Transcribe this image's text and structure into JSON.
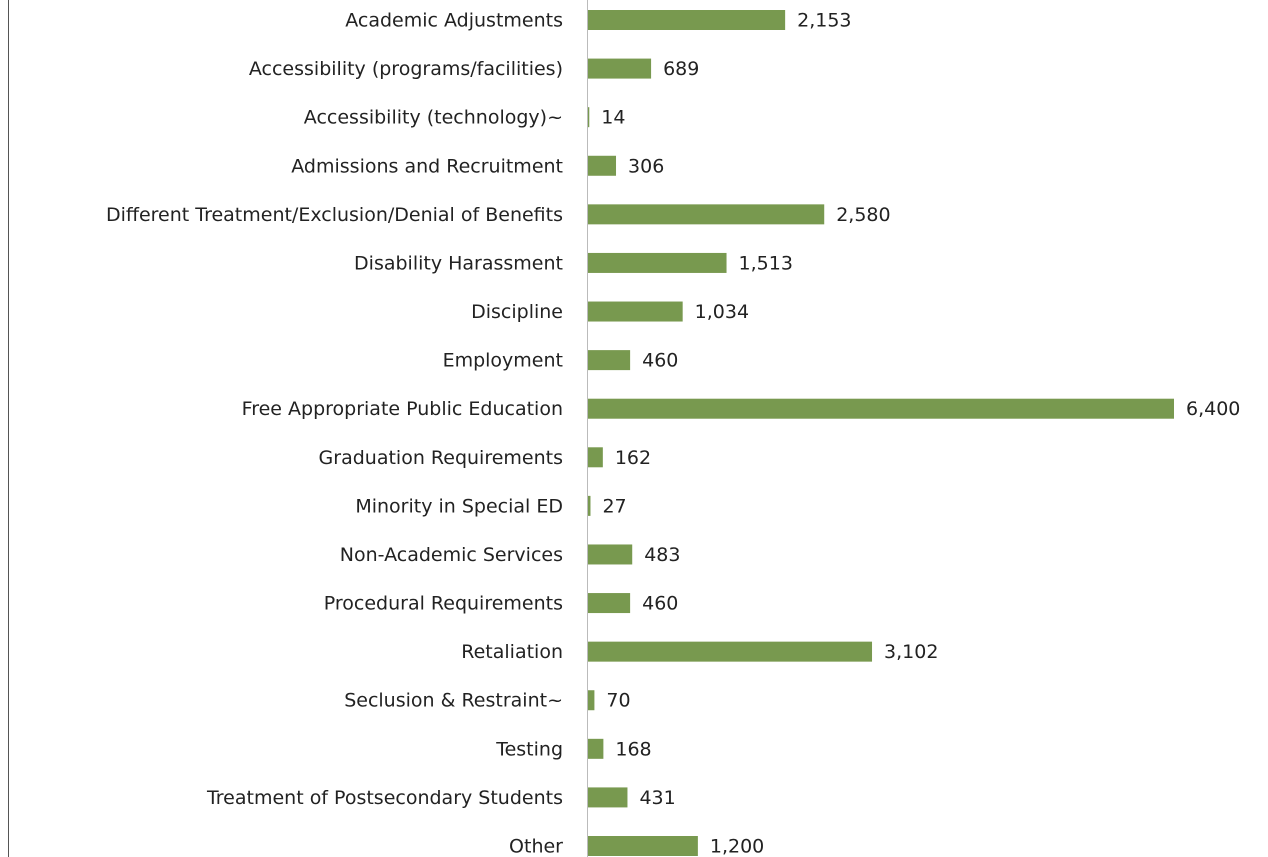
{
  "chart_data": {
    "type": "barh",
    "categories": [
      "Academic Adjustments",
      "Accessibility (programs/facilities)",
      "Accessibility (technology)~",
      "Admissions and Recruitment",
      "Different Treatment/Exclusion/Denial of Benefits",
      "Disability Harassment",
      "Discipline",
      "Employment",
      "Free Appropriate Public Education",
      "Graduation Requirements",
      "Minority in Special ED",
      "Non-Academic Services",
      "Procedural Requirements",
      "Retaliation",
      "Seclusion & Restraint~",
      "Testing",
      "Treatment of Postsecondary Students",
      "Other"
    ],
    "values": [
      2153,
      689,
      14,
      306,
      2580,
      1513,
      1034,
      460,
      6400,
      162,
      27,
      483,
      460,
      3102,
      70,
      168,
      431,
      1200
    ],
    "value_labels": [
      "2,153",
      "689",
      "14",
      "306",
      "2,580",
      "1,513",
      "1,034",
      "460",
      "6,400",
      "162",
      "27",
      "483",
      "460",
      "3,102",
      "70",
      "168",
      "431",
      "1,200"
    ],
    "color": "#78994f"
  }
}
